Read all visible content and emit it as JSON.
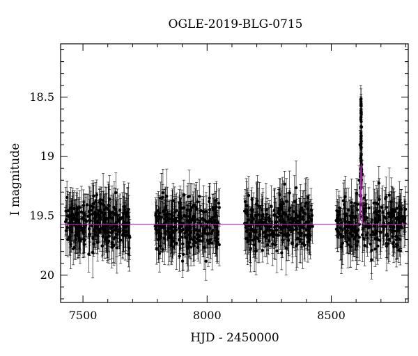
{
  "chart_data": {
    "type": "scatter",
    "title": "OGLE-2019-BLG-0715",
    "xlabel": "HJD - 2450000",
    "ylabel": "I magnitude",
    "xlim": [
      7410,
      8810
    ],
    "ylim": [
      20.23,
      18.05
    ],
    "y_inverted": true,
    "xticks": [
      7500,
      8000,
      8500
    ],
    "xtick_labels": [
      "7500",
      "8000",
      "8500"
    ],
    "yticks": [
      18.5,
      19,
      19.5,
      20
    ],
    "ytick_labels": [
      "18.5",
      "19",
      "19.5",
      "20"
    ],
    "grid": false,
    "colors": {
      "points": "#000000",
      "model": "#c020c0"
    },
    "series": [
      {
        "kind": "photometry",
        "representative_points": [
          {
            "x": 7430,
            "y": 19.55
          },
          {
            "x": 7450,
            "y": 19.62
          },
          {
            "x": 7470,
            "y": 19.48
          },
          {
            "x": 7490,
            "y": 19.7
          },
          {
            "x": 7510,
            "y": 19.58
          },
          {
            "x": 7530,
            "y": 19.45
          },
          {
            "x": 7550,
            "y": 19.66
          },
          {
            "x": 7570,
            "y": 19.53
          },
          {
            "x": 7590,
            "y": 19.61
          },
          {
            "x": 7610,
            "y": 19.5
          },
          {
            "x": 7630,
            "y": 19.57
          },
          {
            "x": 7650,
            "y": 19.63
          },
          {
            "x": 7670,
            "y": 19.47
          },
          {
            "x": 7685,
            "y": 19.56
          },
          {
            "x": 7800,
            "y": 19.58
          },
          {
            "x": 7830,
            "y": 19.49
          },
          {
            "x": 7860,
            "y": 19.64
          },
          {
            "x": 7890,
            "y": 19.55
          },
          {
            "x": 7920,
            "y": 19.6
          },
          {
            "x": 7950,
            "y": 19.51
          },
          {
            "x": 7980,
            "y": 19.67
          },
          {
            "x": 8010,
            "y": 19.54
          },
          {
            "x": 8040,
            "y": 19.59
          },
          {
            "x": 8160,
            "y": 19.56
          },
          {
            "x": 8190,
            "y": 19.63
          },
          {
            "x": 8220,
            "y": 19.5
          },
          {
            "x": 8250,
            "y": 19.61
          },
          {
            "x": 8280,
            "y": 19.55
          },
          {
            "x": 8310,
            "y": 19.66
          },
          {
            "x": 8340,
            "y": 19.52
          },
          {
            "x": 8370,
            "y": 19.58
          },
          {
            "x": 8400,
            "y": 19.62
          },
          {
            "x": 8420,
            "y": 19.53
          },
          {
            "x": 8530,
            "y": 19.57
          },
          {
            "x": 8560,
            "y": 19.64
          },
          {
            "x": 8590,
            "y": 19.51
          },
          {
            "x": 8605,
            "y": 19.45
          },
          {
            "x": 8612,
            "y": 19.2
          },
          {
            "x": 8616,
            "y": 18.9
          },
          {
            "x": 8619,
            "y": 18.52
          },
          {
            "x": 8620,
            "y": 18.55
          },
          {
            "x": 8622,
            "y": 18.75
          },
          {
            "x": 8625,
            "y": 19.15
          },
          {
            "x": 8632,
            "y": 19.48
          },
          {
            "x": 8650,
            "y": 19.6
          },
          {
            "x": 8680,
            "y": 19.55
          },
          {
            "x": 8710,
            "y": 19.62
          },
          {
            "x": 8740,
            "y": 19.5
          },
          {
            "x": 8770,
            "y": 19.59
          },
          {
            "x": 8795,
            "y": 19.54
          }
        ],
        "seasons": [
          [
            7430,
            7690
          ],
          [
            7790,
            8050
          ],
          [
            8150,
            8425
          ],
          [
            8520,
            8800
          ]
        ],
        "typical_scatter_mag": 0.17
      },
      {
        "kind": "model",
        "baseline": 19.57,
        "peak_x": 8620,
        "peak_y": 19.07,
        "peak_width_days": 3.5
      }
    ]
  }
}
